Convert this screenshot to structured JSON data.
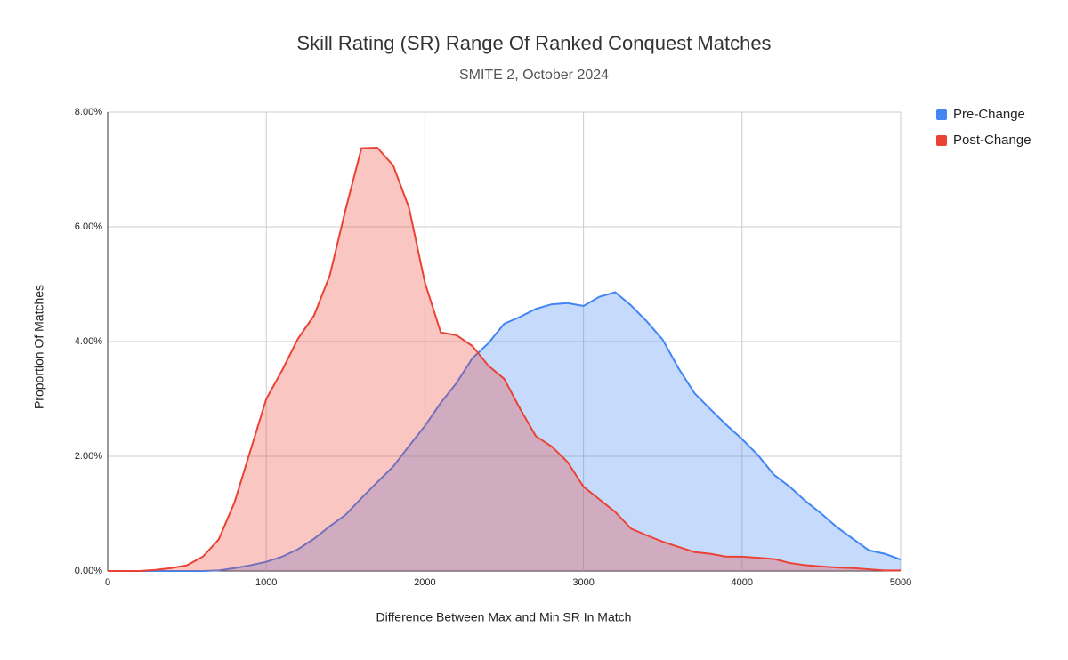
{
  "chart_data": {
    "type": "area",
    "title": "Skill Rating (SR) Range Of Ranked Conquest Matches",
    "subtitle": "SMITE 2, October 2024",
    "x_label": "Difference Between Max and Min SR In Match",
    "y_label": "Proportion Of Matches",
    "x": [
      0,
      100,
      200,
      300,
      400,
      500,
      600,
      700,
      800,
      900,
      1000,
      1100,
      1200,
      1300,
      1400,
      1500,
      1600,
      1700,
      1800,
      1900,
      2000,
      2100,
      2200,
      2300,
      2400,
      2500,
      2600,
      2700,
      2800,
      2900,
      3000,
      3100,
      3200,
      3300,
      3400,
      3500,
      3600,
      3700,
      3800,
      3900,
      4000,
      4100,
      4200,
      4300,
      4400,
      4500,
      4600,
      4700,
      4800,
      4900,
      5000
    ],
    "series": [
      {
        "name": "Pre-Change",
        "color": "#4285f4",
        "values": [
          0,
          0,
          0,
          0,
          0,
          0,
          0,
          0.01,
          0.05,
          0.1,
          0.16,
          0.25,
          0.38,
          0.56,
          0.78,
          0.98,
          1.27,
          1.55,
          1.82,
          2.18,
          2.53,
          2.93,
          3.28,
          3.71,
          3.97,
          4.31,
          4.43,
          4.57,
          4.65,
          4.67,
          4.62,
          4.78,
          4.86,
          4.63,
          4.35,
          4.03,
          3.53,
          3.1,
          2.82,
          2.55,
          2.3,
          2.02,
          1.68,
          1.47,
          1.22,
          1.0,
          0.76,
          0.56,
          0.36,
          0.3,
          0.2
        ]
      },
      {
        "name": "Post-Change",
        "color": "#ea4335",
        "values": [
          0,
          0,
          0,
          0.02,
          0.05,
          0.1,
          0.25,
          0.55,
          1.2,
          2.1,
          3.0,
          3.5,
          4.05,
          4.45,
          5.15,
          6.3,
          7.37,
          7.38,
          7.07,
          6.33,
          5.03,
          4.16,
          4.11,
          3.92,
          3.58,
          3.35,
          2.83,
          2.35,
          2.17,
          1.9,
          1.47,
          1.25,
          1.03,
          0.74,
          0.62,
          0.51,
          0.42,
          0.33,
          0.3,
          0.25,
          0.25,
          0.23,
          0.21,
          0.14,
          0.1,
          0.08,
          0.06,
          0.05,
          0.03,
          0.01,
          0.01
        ]
      }
    ],
    "xlim": [
      0,
      5000
    ],
    "xticks": [
      0,
      1000,
      2000,
      3000,
      4000,
      5000
    ],
    "ylim": [
      0,
      8
    ],
    "yticks": [
      {
        "value": 0,
        "label": "0.00%"
      },
      {
        "value": 2,
        "label": "2.00%"
      },
      {
        "value": 4,
        "label": "4.00%"
      },
      {
        "value": 6,
        "label": "6.00%"
      },
      {
        "value": 8,
        "label": "8.00%"
      }
    ],
    "grid": true,
    "legend": "right"
  }
}
